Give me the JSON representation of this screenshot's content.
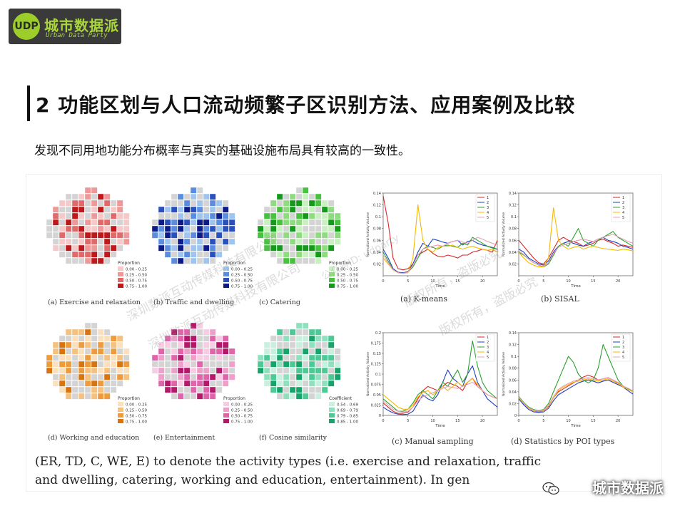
{
  "brand": {
    "name_cn": "城市数据派",
    "name_en": "Urban Data Party",
    "mark": "UDP"
  },
  "title": "2 功能区划与人口流动频繁子区识别方法、应用案例及比较",
  "subtitle": "发现不同用地功能分布概率与真实的基础设施布局具有较高的一致性。",
  "figure": {
    "maps": [
      {
        "caption": "(a) Exercise and relaxation",
        "legend_title": "Proportion",
        "legend": [
          "0.00 - 0.25",
          "0.25 - 0.50",
          "0.50 - 0.75",
          "0.75 - 1.00"
        ],
        "colors": [
          "#f6c9c9",
          "#ee9898",
          "#e06a6a",
          "#c0181a"
        ]
      },
      {
        "caption": "(b) Traffic and dwelling",
        "legend_title": "Proportion",
        "legend": [
          "0.00 - 0.25",
          "0.25 - 0.50",
          "0.50 - 0.75",
          "0.75 - 1.00"
        ],
        "colors": [
          "#9fc5ef",
          "#5a8ce0",
          "#2a4fbe",
          "#0b1c8a"
        ]
      },
      {
        "caption": "(c) Catering",
        "legend_title": "Proportion",
        "legend": [
          "0.00 - 0.25",
          "0.25 - 0.50",
          "0.50 - 0.75",
          "0.75 - 1.00"
        ],
        "colors": [
          "#c8f0c0",
          "#8fdc80",
          "#47c23f",
          "#139a1b"
        ]
      },
      {
        "caption": "(d) Working and education",
        "legend_title": "Proportion",
        "legend": [
          "0.00 - 0.25",
          "0.25 - 0.50",
          "0.50 - 0.75",
          "0.75 - 1.00"
        ],
        "colors": [
          "#fbe0bd",
          "#f6c07e",
          "#ef9b3c",
          "#d9730e"
        ]
      },
      {
        "caption": "(e) Entertainment",
        "legend_title": "Proportion",
        "legend": [
          "0.00 - 0.25",
          "0.25 - 0.50",
          "0.50 - 0.75",
          "0.75 - 1.00"
        ],
        "colors": [
          "#f6cde3",
          "#ee9fca",
          "#e064aa",
          "#b5176b"
        ]
      },
      {
        "caption": "(f) Cosine similarity",
        "legend_title": "Coefficient",
        "legend": [
          "0.54 - 0.69",
          "0.69 - 0.79",
          "0.79 - 0.85",
          "0.85 - 1.00"
        ],
        "colors": [
          "#c9f0df",
          "#8fe0bc",
          "#4cc995",
          "#16a46a"
        ]
      }
    ],
    "caption_line1": "(ER, TD, C, WE, E) to denote the activity types (i.e. exercise and relaxation, traffic",
    "caption_line2": "and dwelling, catering, working and education, entertainment). In gen",
    "watermarks": [
      "深圳数派互动传媒科技有限公司",
      "版权所有，盗版必究",
      "公众号ID: udparty"
    ]
  },
  "chart_data": [
    {
      "type": "line",
      "caption": "(a) K-means",
      "xlabel": "Time",
      "ylabel": "Normalized Activity Volume",
      "xlim": [
        0,
        23
      ],
      "ylim": [
        0,
        0.14
      ],
      "xticks": [
        0,
        5,
        10,
        15,
        20
      ],
      "yticks": [
        0.02,
        0.04,
        0.06,
        0.08,
        0.1,
        0.12,
        0.14
      ],
      "x": [
        0,
        1,
        2,
        3,
        4,
        5,
        6,
        7,
        8,
        9,
        10,
        11,
        12,
        13,
        14,
        15,
        16,
        17,
        18,
        19,
        20,
        21,
        22,
        23
      ],
      "series": [
        {
          "name": "1",
          "color": "#d62728",
          "values": [
            0.135,
            0.09,
            0.03,
            0.012,
            0.01,
            0.012,
            0.02,
            0.035,
            0.04,
            0.045,
            0.038,
            0.033,
            0.032,
            0.035,
            0.033,
            0.03,
            0.035,
            0.035,
            0.04,
            0.042,
            0.045,
            0.043,
            0.04,
            0.06
          ]
        },
        {
          "name": "2",
          "color": "#1f3fbf",
          "values": [
            0.045,
            0.03,
            0.012,
            0.006,
            0.005,
            0.007,
            0.02,
            0.04,
            0.055,
            0.05,
            0.062,
            0.06,
            0.057,
            0.055,
            0.058,
            0.06,
            0.052,
            0.058,
            0.06,
            0.055,
            0.052,
            0.05,
            0.048,
            0.045
          ]
        },
        {
          "name": "3",
          "color": "#2ca02c",
          "values": [
            0.04,
            0.025,
            0.01,
            0.005,
            0.004,
            0.006,
            0.015,
            0.03,
            0.045,
            0.05,
            0.048,
            0.045,
            0.05,
            0.052,
            0.05,
            0.048,
            0.055,
            0.052,
            0.065,
            0.06,
            0.055,
            0.05,
            0.047,
            0.045
          ]
        },
        {
          "name": "4",
          "color": "#f5b800",
          "values": [
            0.03,
            0.02,
            0.01,
            0.005,
            0.004,
            0.005,
            0.03,
            0.12,
            0.06,
            0.045,
            0.04,
            0.048,
            0.05,
            0.05,
            0.052,
            0.048,
            0.045,
            0.048,
            0.05,
            0.047,
            0.045,
            0.043,
            0.045,
            0.04
          ]
        },
        {
          "name": "5",
          "color": "#e8a0b8",
          "values": [
            0.035,
            0.022,
            0.01,
            0.005,
            0.004,
            0.006,
            0.018,
            0.035,
            0.045,
            0.048,
            0.05,
            0.052,
            0.05,
            0.055,
            0.058,
            0.06,
            0.057,
            0.055,
            0.06,
            0.065,
            0.062,
            0.058,
            0.055,
            0.052
          ]
        }
      ]
    },
    {
      "type": "line",
      "caption": "(b) SISAL",
      "xlabel": "Time",
      "ylabel": "Normalized Activity Volume",
      "xlim": [
        0,
        23
      ],
      "ylim": [
        0,
        0.14
      ],
      "xticks": [
        0,
        5,
        10,
        15,
        20
      ],
      "yticks": [
        0.02,
        0.04,
        0.06,
        0.08,
        0.1,
        0.12,
        0.14
      ],
      "x": [
        0,
        1,
        2,
        3,
        4,
        5,
        6,
        7,
        8,
        9,
        10,
        11,
        12,
        13,
        14,
        15,
        16,
        17,
        18,
        19,
        20,
        21,
        22,
        23
      ],
      "series": [
        {
          "name": "1",
          "color": "#d62728",
          "values": [
            0.06,
            0.05,
            0.04,
            0.03,
            0.022,
            0.02,
            0.03,
            0.045,
            0.06,
            0.065,
            0.06,
            0.058,
            0.055,
            0.05,
            0.052,
            0.055,
            0.06,
            0.062,
            0.058,
            0.055,
            0.05,
            0.052,
            0.05,
            0.048
          ]
        },
        {
          "name": "2",
          "color": "#1f3fbf",
          "values": [
            0.045,
            0.04,
            0.03,
            0.025,
            0.02,
            0.018,
            0.025,
            0.04,
            0.05,
            0.055,
            0.058,
            0.055,
            0.052,
            0.05,
            0.055,
            0.058,
            0.062,
            0.065,
            0.06,
            0.058,
            0.055,
            0.05,
            0.048,
            0.045
          ]
        },
        {
          "name": "3",
          "color": "#2ca02c",
          "values": [
            0.04,
            0.035,
            0.028,
            0.022,
            0.018,
            0.015,
            0.02,
            0.035,
            0.05,
            0.055,
            0.05,
            0.065,
            0.08,
            0.06,
            0.055,
            0.05,
            0.06,
            0.065,
            0.07,
            0.075,
            0.065,
            0.06,
            0.055,
            0.05
          ]
        },
        {
          "name": "4",
          "color": "#f5b800",
          "values": [
            0.04,
            0.03,
            0.022,
            0.018,
            0.015,
            0.015,
            0.03,
            0.115,
            0.06,
            0.05,
            0.045,
            0.048,
            0.05,
            0.045,
            0.048,
            0.05,
            0.048,
            0.046,
            0.045,
            0.044,
            0.043,
            0.045,
            0.044,
            0.042
          ]
        },
        {
          "name": "5",
          "color": "#e8a0b8",
          "values": [
            0.042,
            0.036,
            0.028,
            0.022,
            0.018,
            0.016,
            0.022,
            0.038,
            0.048,
            0.052,
            0.055,
            0.058,
            0.06,
            0.062,
            0.06,
            0.058,
            0.062,
            0.065,
            0.068,
            0.07,
            0.066,
            0.062,
            0.058,
            0.055
          ]
        }
      ]
    },
    {
      "type": "line",
      "caption": "(c) Manual sampling",
      "xlabel": "Time",
      "ylabel": "Normalized Activity Volume",
      "xlim": [
        0,
        23
      ],
      "ylim": [
        0,
        0.2
      ],
      "xticks": [
        0,
        5,
        10,
        15,
        20
      ],
      "yticks": [
        0.0,
        0.025,
        0.05,
        0.075,
        0.1,
        0.125,
        0.15,
        0.175,
        0.2
      ],
      "x": [
        0,
        1,
        2,
        3,
        4,
        5,
        6,
        7,
        8,
        9,
        10,
        11,
        12,
        13,
        14,
        15,
        16,
        17,
        18,
        19,
        20,
        21,
        22,
        23
      ],
      "series": [
        {
          "name": "1",
          "color": "#d62728",
          "values": [
            0.03,
            0.02,
            0.01,
            0.005,
            0.005,
            0.008,
            0.02,
            0.04,
            0.06,
            0.07,
            0.065,
            0.06,
            0.07,
            0.08,
            0.075,
            0.07,
            0.06,
            0.08,
            0.09,
            0.07,
            0.06,
            0.05,
            0.045,
            0.04
          ]
        },
        {
          "name": "2",
          "color": "#1f3fbf",
          "values": [
            0.02,
            0.012,
            0.006,
            0.003,
            0.002,
            0.003,
            0.01,
            0.03,
            0.05,
            0.04,
            0.035,
            0.05,
            0.08,
            0.11,
            0.09,
            0.08,
            0.07,
            0.1,
            0.12,
            0.08,
            0.06,
            0.04,
            0.03,
            0.02
          ]
        },
        {
          "name": "3",
          "color": "#2ca02c",
          "values": [
            0.04,
            0.03,
            0.02,
            0.01,
            0.01,
            0.015,
            0.03,
            0.05,
            0.06,
            0.05,
            0.04,
            0.06,
            0.08,
            0.07,
            0.09,
            0.11,
            0.08,
            0.1,
            0.18,
            0.12,
            0.08,
            0.06,
            0.05,
            0.04
          ]
        },
        {
          "name": "4",
          "color": "#f5b800",
          "values": [
            0.05,
            0.04,
            0.03,
            0.02,
            0.015,
            0.015,
            0.025,
            0.045,
            0.055,
            0.06,
            0.05,
            0.06,
            0.07,
            0.06,
            0.07,
            0.08,
            0.07,
            0.08,
            0.09,
            0.075,
            0.06,
            0.05,
            0.045,
            0.04
          ]
        },
        {
          "name": "5",
          "color": "#e8a0b8",
          "values": [
            0.035,
            0.025,
            0.015,
            0.01,
            0.008,
            0.01,
            0.02,
            0.035,
            0.045,
            0.05,
            0.055,
            0.06,
            0.065,
            0.07,
            0.068,
            0.065,
            0.07,
            0.075,
            0.08,
            0.07,
            0.06,
            0.05,
            0.045,
            0.04
          ]
        }
      ]
    },
    {
      "type": "line",
      "caption": "(d) Statistics by POI types",
      "xlabel": "Time",
      "ylabel": "Normalized Activity Volume",
      "xlim": [
        0,
        23
      ],
      "ylim": [
        0,
        0.14
      ],
      "xticks": [
        0,
        5,
        10,
        15,
        20
      ],
      "yticks": [
        0.0,
        0.02,
        0.04,
        0.06,
        0.08,
        0.1,
        0.12,
        0.14
      ],
      "x": [
        0,
        1,
        2,
        3,
        4,
        5,
        6,
        7,
        8,
        9,
        10,
        11,
        12,
        13,
        14,
        15,
        16,
        17,
        18,
        19,
        20,
        21,
        22,
        23
      ],
      "series": [
        {
          "name": "1",
          "color": "#d62728",
          "values": [
            0.03,
            0.02,
            0.012,
            0.008,
            0.006,
            0.008,
            0.015,
            0.03,
            0.04,
            0.045,
            0.05,
            0.055,
            0.06,
            0.065,
            0.068,
            0.065,
            0.06,
            0.062,
            0.064,
            0.06,
            0.055,
            0.05,
            0.045,
            0.04
          ]
        },
        {
          "name": "2",
          "color": "#1f3fbf",
          "values": [
            0.028,
            0.018,
            0.01,
            0.006,
            0.005,
            0.006,
            0.012,
            0.025,
            0.035,
            0.04,
            0.045,
            0.05,
            0.055,
            0.058,
            0.06,
            0.058,
            0.055,
            0.058,
            0.06,
            0.056,
            0.052,
            0.048,
            0.042,
            0.036
          ]
        },
        {
          "name": "3",
          "color": "#2ca02c",
          "values": [
            0.032,
            0.022,
            0.014,
            0.01,
            0.008,
            0.01,
            0.02,
            0.04,
            0.06,
            0.08,
            0.1,
            0.09,
            0.07,
            0.06,
            0.055,
            0.06,
            0.08,
            0.12,
            0.1,
            0.08,
            0.06,
            0.05,
            0.045,
            0.04
          ]
        },
        {
          "name": "4",
          "color": "#f5b800",
          "values": [
            0.03,
            0.02,
            0.012,
            0.008,
            0.007,
            0.008,
            0.016,
            0.03,
            0.042,
            0.048,
            0.052,
            0.056,
            0.058,
            0.06,
            0.062,
            0.06,
            0.058,
            0.06,
            0.062,
            0.058,
            0.054,
            0.048,
            0.044,
            0.04
          ]
        },
        {
          "name": "5",
          "color": "#e8a0b8",
          "values": [
            0.031,
            0.021,
            0.013,
            0.009,
            0.007,
            0.009,
            0.017,
            0.032,
            0.044,
            0.05,
            0.054,
            0.058,
            0.06,
            0.062,
            0.064,
            0.062,
            0.06,
            0.062,
            0.064,
            0.06,
            0.056,
            0.05,
            0.046,
            0.042
          ]
        }
      ]
    }
  ]
}
